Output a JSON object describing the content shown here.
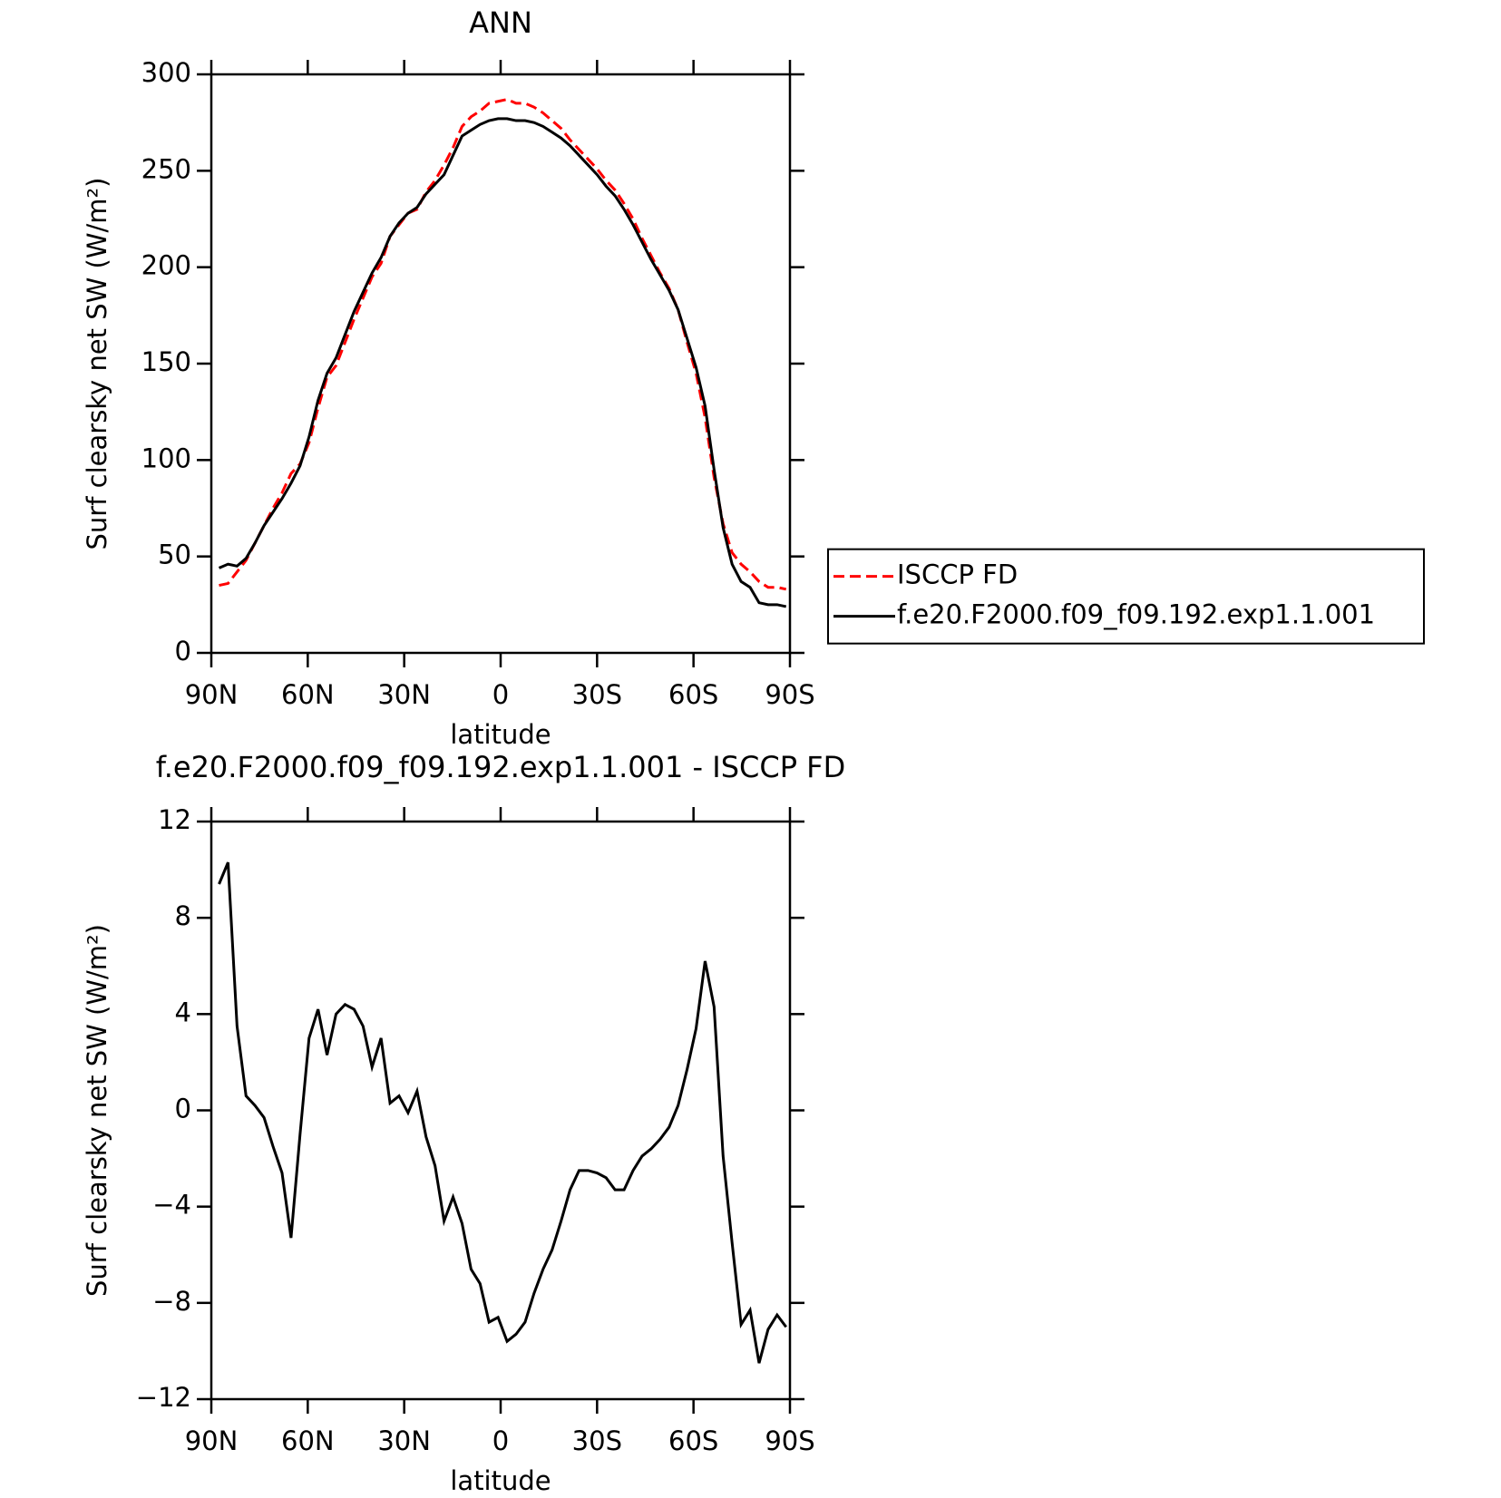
{
  "chart_data": [
    {
      "type": "line",
      "title": "ANN",
      "x_label": "latitude",
      "y_label": "Surf clearsky net SW (W/m²)",
      "xlim": [
        90,
        -90
      ],
      "ylim": [
        0,
        300
      ],
      "xticks": [
        {
          "value": 90,
          "label": "90N"
        },
        {
          "value": 60,
          "label": "60N"
        },
        {
          "value": 30,
          "label": "30N"
        },
        0,
        {
          "value": -30,
          "label": "30S"
        },
        {
          "value": -60,
          "label": "60S"
        },
        {
          "value": -90,
          "label": "90S"
        }
      ],
      "yticks": [
        0,
        50,
        100,
        150,
        200,
        250,
        300
      ],
      "legend_position": "right",
      "x": [
        87.6,
        84.8,
        82.0,
        79.2,
        76.4,
        73.6,
        70.8,
        68.0,
        65.2,
        62.4,
        59.6,
        56.8,
        54.0,
        51.2,
        48.4,
        45.6,
        42.8,
        40.0,
        37.2,
        34.4,
        31.6,
        28.8,
        26.0,
        23.2,
        20.4,
        17.6,
        14.8,
        12.0,
        9.2,
        6.4,
        3.6,
        0.8,
        -2.0,
        -4.8,
        -7.6,
        -10.4,
        -13.2,
        -16.0,
        -18.8,
        -21.6,
        -24.4,
        -27.2,
        -30.0,
        -32.8,
        -35.6,
        -38.4,
        -41.2,
        -44.0,
        -46.8,
        -49.6,
        -52.4,
        -55.2,
        -58.0,
        -60.8,
        -63.6,
        -66.4,
        -69.2,
        -72.0,
        -74.8,
        -77.6,
        -80.4,
        -83.2,
        -86.0,
        -88.8
      ],
      "series": [
        {
          "name": "ISCCP FD",
          "color": "#ff0000",
          "line_style": "dashed",
          "values": [
            35,
            36,
            42,
            48,
            57,
            66,
            75,
            83,
            93,
            98,
            109,
            127,
            143,
            149,
            161,
            173,
            184,
            195,
            202,
            216,
            222,
            228,
            230,
            239,
            245,
            253,
            262,
            273,
            278,
            281,
            285,
            286,
            287,
            285,
            285,
            283,
            280,
            276,
            272,
            266,
            261,
            256,
            251,
            245,
            240,
            233,
            225,
            215,
            206,
            197,
            189,
            178,
            161,
            145,
            122,
            91,
            67,
            52,
            46,
            42,
            37,
            34,
            34,
            33
          ]
        },
        {
          "name": "f.e20.F2000.f09_f09.192.exp1.1.001",
          "color": "#000000",
          "line_style": "solid",
          "values": [
            44,
            46,
            45,
            49,
            57,
            66,
            73,
            80,
            88,
            97,
            112,
            131,
            145,
            153,
            165,
            177,
            187,
            197,
            205,
            216,
            223,
            228,
            231,
            238,
            243,
            248,
            258,
            268,
            271,
            274,
            276,
            277,
            277,
            276,
            276,
            275,
            273,
            270,
            267,
            263,
            258,
            253,
            248,
            242,
            237,
            230,
            222,
            213,
            204,
            196,
            188,
            178,
            163,
            148,
            128,
            95,
            65,
            46,
            37,
            34,
            26,
            25,
            25,
            24
          ]
        }
      ]
    },
    {
      "type": "line",
      "title": "f.e20.F2000.f09_f09.192.exp1.1.001 - ISCCP FD",
      "x_label": "latitude",
      "y_label": "Surf clearsky net SW (W/m²)",
      "xlim": [
        90,
        -90
      ],
      "ylim": [
        -12,
        12
      ],
      "xticks": [
        {
          "value": 90,
          "label": "90N"
        },
        {
          "value": 60,
          "label": "60N"
        },
        {
          "value": 30,
          "label": "30N"
        },
        0,
        {
          "value": -30,
          "label": "30S"
        },
        {
          "value": -60,
          "label": "60S"
        },
        {
          "value": -90,
          "label": "90S"
        }
      ],
      "yticks": [
        {
          "value": -12,
          "label": "−12"
        },
        {
          "value": -8,
          "label": "−8"
        },
        {
          "value": -4,
          "label": "−4"
        },
        0,
        4,
        8,
        12
      ],
      "x": [
        87.6,
        84.8,
        82.0,
        79.2,
        76.4,
        73.6,
        70.8,
        68.0,
        65.2,
        62.4,
        59.6,
        56.8,
        54.0,
        51.2,
        48.4,
        45.6,
        42.8,
        40.0,
        37.2,
        34.4,
        31.6,
        28.8,
        26.0,
        23.2,
        20.4,
        17.6,
        14.8,
        12.0,
        9.2,
        6.4,
        3.6,
        0.8,
        -2.0,
        -4.8,
        -7.6,
        -10.4,
        -13.2,
        -16.0,
        -18.8,
        -21.6,
        -24.4,
        -27.2,
        -30.0,
        -32.8,
        -35.6,
        -38.4,
        -41.2,
        -44.0,
        -46.8,
        -49.6,
        -52.4,
        -55.2,
        -58.0,
        -60.8,
        -63.6,
        -66.4,
        -69.2,
        -72.0,
        -74.8,
        -77.6,
        -80.4,
        -83.2,
        -86.0,
        -88.8
      ],
      "series": [
        {
          "color": "#000000",
          "line_style": "solid",
          "values": [
            9.4,
            10.3,
            3.5,
            0.6,
            0.2,
            -0.3,
            -1.5,
            -2.6,
            -5.3,
            -1.0,
            3.0,
            4.2,
            2.3,
            4.0,
            4.4,
            4.2,
            3.5,
            1.8,
            3.0,
            0.3,
            0.6,
            -0.1,
            0.8,
            -1.1,
            -2.3,
            -4.6,
            -3.6,
            -4.7,
            -6.6,
            -7.2,
            -8.8,
            -8.6,
            -9.6,
            -9.3,
            -8.8,
            -7.6,
            -6.6,
            -5.8,
            -4.6,
            -3.3,
            -2.5,
            -2.5,
            -2.6,
            -2.8,
            -3.3,
            -3.3,
            -2.5,
            -1.9,
            -1.6,
            -1.2,
            -0.7,
            0.2,
            1.7,
            3.4,
            6.2,
            4.3,
            -1.9,
            -5.5,
            -8.9,
            -8.3,
            -10.5,
            -9.1,
            -8.5,
            -9.0
          ]
        }
      ]
    }
  ]
}
